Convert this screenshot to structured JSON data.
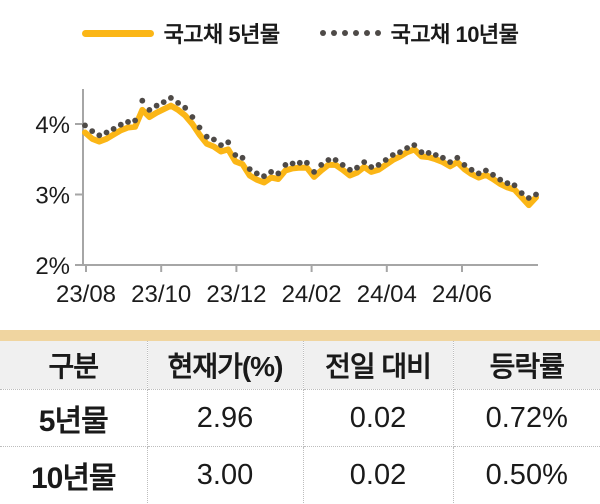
{
  "legend": {
    "series5_label": "국고채 5년물",
    "series10_label": "국고채 10년물"
  },
  "colors": {
    "line5": "#FBB616",
    "dots10": "#4E4A47",
    "axis": "#A6A6A6",
    "table_top_bar": "#F0D5A0",
    "header_bg": "#F0F0F0",
    "dotted_border": "#BDBDBD",
    "text": "#1A1A1A"
  },
  "chart_data": {
    "type": "line",
    "title": "",
    "xlabel": "",
    "ylabel": "",
    "grid": false,
    "legend_position": "top-center",
    "ylim": [
      2,
      4.6
    ],
    "y_axis": {
      "ticks": [
        {
          "label": "4%",
          "value": 4
        },
        {
          "label": "3%",
          "value": 3
        },
        {
          "label": "2%",
          "value": 2
        }
      ]
    },
    "x_axis": {
      "tick_labels": [
        "23/08",
        "23/10",
        "23/12",
        "24/02",
        "24/04",
        "24/06"
      ],
      "range_note": "daily observations 2023-08 through 2024-08"
    },
    "series": [
      {
        "name": "국고채 5년물",
        "style": "solid-line",
        "color": "#FBB616",
        "values": [
          3.88,
          3.79,
          3.75,
          3.79,
          3.85,
          3.91,
          3.95,
          3.96,
          4.2,
          4.1,
          4.16,
          4.21,
          4.26,
          4.2,
          4.12,
          4.0,
          3.85,
          3.72,
          3.68,
          3.61,
          3.64,
          3.47,
          3.43,
          3.27,
          3.21,
          3.17,
          3.24,
          3.22,
          3.34,
          3.37,
          3.38,
          3.38,
          3.25,
          3.34,
          3.42,
          3.42,
          3.35,
          3.27,
          3.31,
          3.39,
          3.32,
          3.35,
          3.42,
          3.49,
          3.54,
          3.6,
          3.64,
          3.54,
          3.53,
          3.5,
          3.46,
          3.4,
          3.46,
          3.36,
          3.29,
          3.24,
          3.28,
          3.22,
          3.15,
          3.1,
          3.07,
          2.96,
          2.85,
          2.96
        ]
      },
      {
        "name": "국고채 10년물",
        "style": "dots",
        "color": "#4E4A47",
        "values": [
          3.98,
          3.9,
          3.84,
          3.88,
          3.93,
          3.99,
          4.03,
          4.05,
          4.33,
          4.2,
          4.26,
          4.31,
          4.37,
          4.3,
          4.23,
          4.1,
          3.95,
          3.82,
          3.78,
          3.7,
          3.74,
          3.56,
          3.52,
          3.36,
          3.3,
          3.26,
          3.32,
          3.3,
          3.42,
          3.44,
          3.45,
          3.45,
          3.32,
          3.42,
          3.49,
          3.49,
          3.42,
          3.35,
          3.38,
          3.46,
          3.39,
          3.42,
          3.49,
          3.56,
          3.6,
          3.66,
          3.7,
          3.6,
          3.59,
          3.56,
          3.52,
          3.46,
          3.52,
          3.42,
          3.35,
          3.3,
          3.34,
          3.28,
          3.21,
          3.16,
          3.13,
          3.02,
          2.95,
          3.0
        ]
      }
    ]
  },
  "table": {
    "headers": [
      "구분",
      "현재가(%)",
      "전일 대비",
      "등락률"
    ],
    "rows": [
      {
        "label": "5년물",
        "cells": [
          "2.96",
          "0.02",
          "0.72%"
        ]
      },
      {
        "label": "10년물",
        "cells": [
          "3.00",
          "0.02",
          "0.50%"
        ]
      }
    ]
  }
}
